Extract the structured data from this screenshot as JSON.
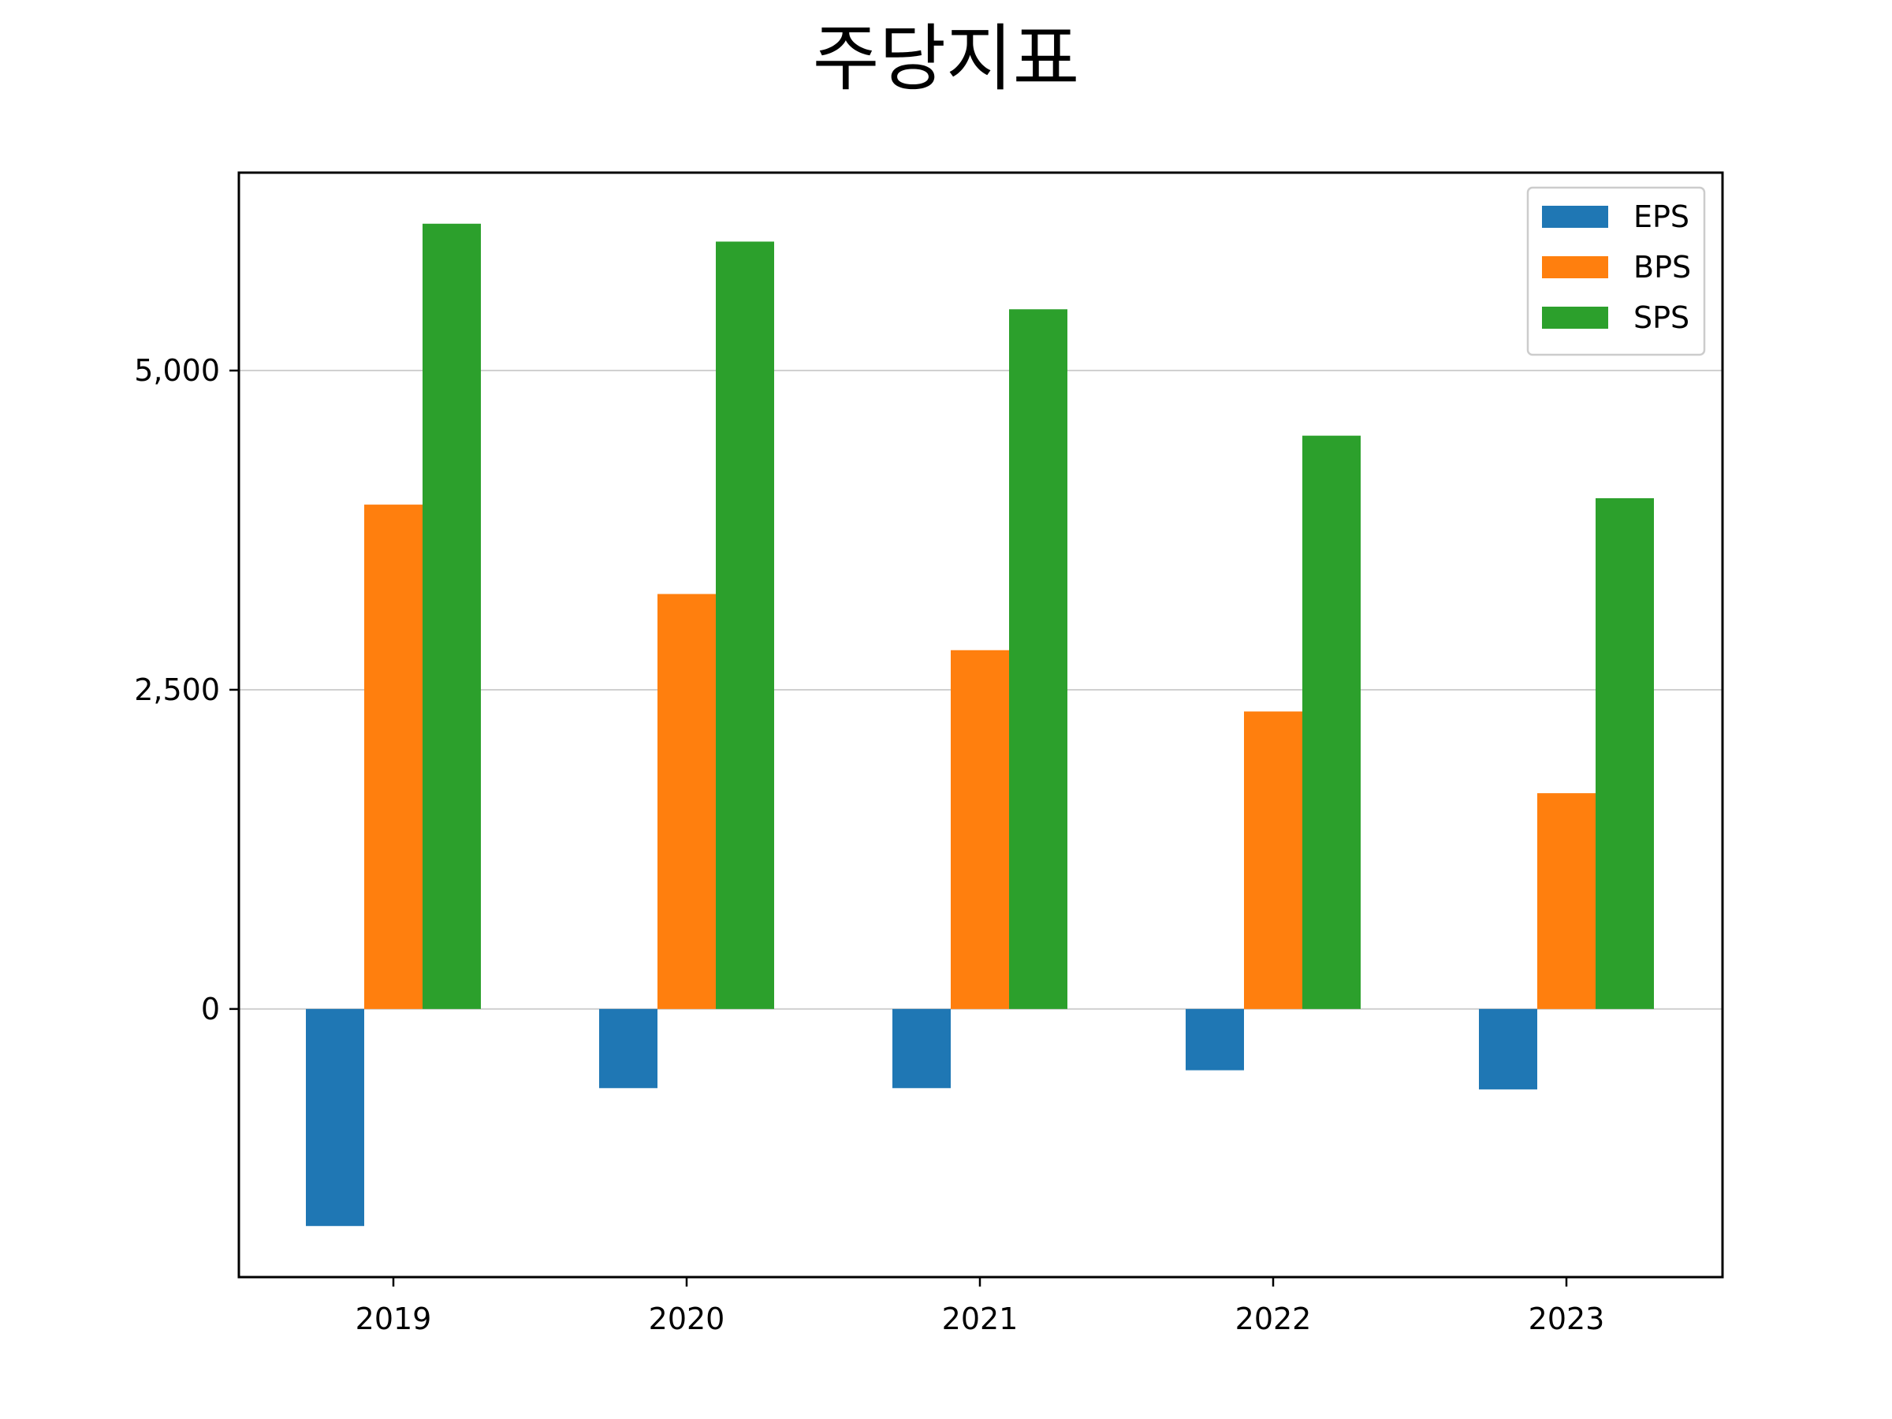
{
  "chart_data": {
    "type": "bar",
    "title": "주당지표",
    "categories": [
      "2019",
      "2020",
      "2021",
      "2022",
      "2023"
    ],
    "series": [
      {
        "name": "EPS",
        "color": "#1f77b4",
        "values": [
          -1700,
          -620,
          -620,
          -480,
          -630
        ]
      },
      {
        "name": "BPS",
        "color": "#ff7f0e",
        "values": [
          3950,
          3250,
          2810,
          2330,
          1690
        ]
      },
      {
        "name": "SPS",
        "color": "#2ca02c",
        "values": [
          6150,
          6010,
          5480,
          4490,
          4000
        ]
      }
    ],
    "yticks": [
      0,
      2500,
      5000
    ],
    "ytick_labels": [
      "0",
      "2,500",
      "5,000"
    ],
    "ylim": [
      -2100,
      6550
    ],
    "grid": "y",
    "legend_position": "top-right",
    "xlabel": "",
    "ylabel": ""
  }
}
